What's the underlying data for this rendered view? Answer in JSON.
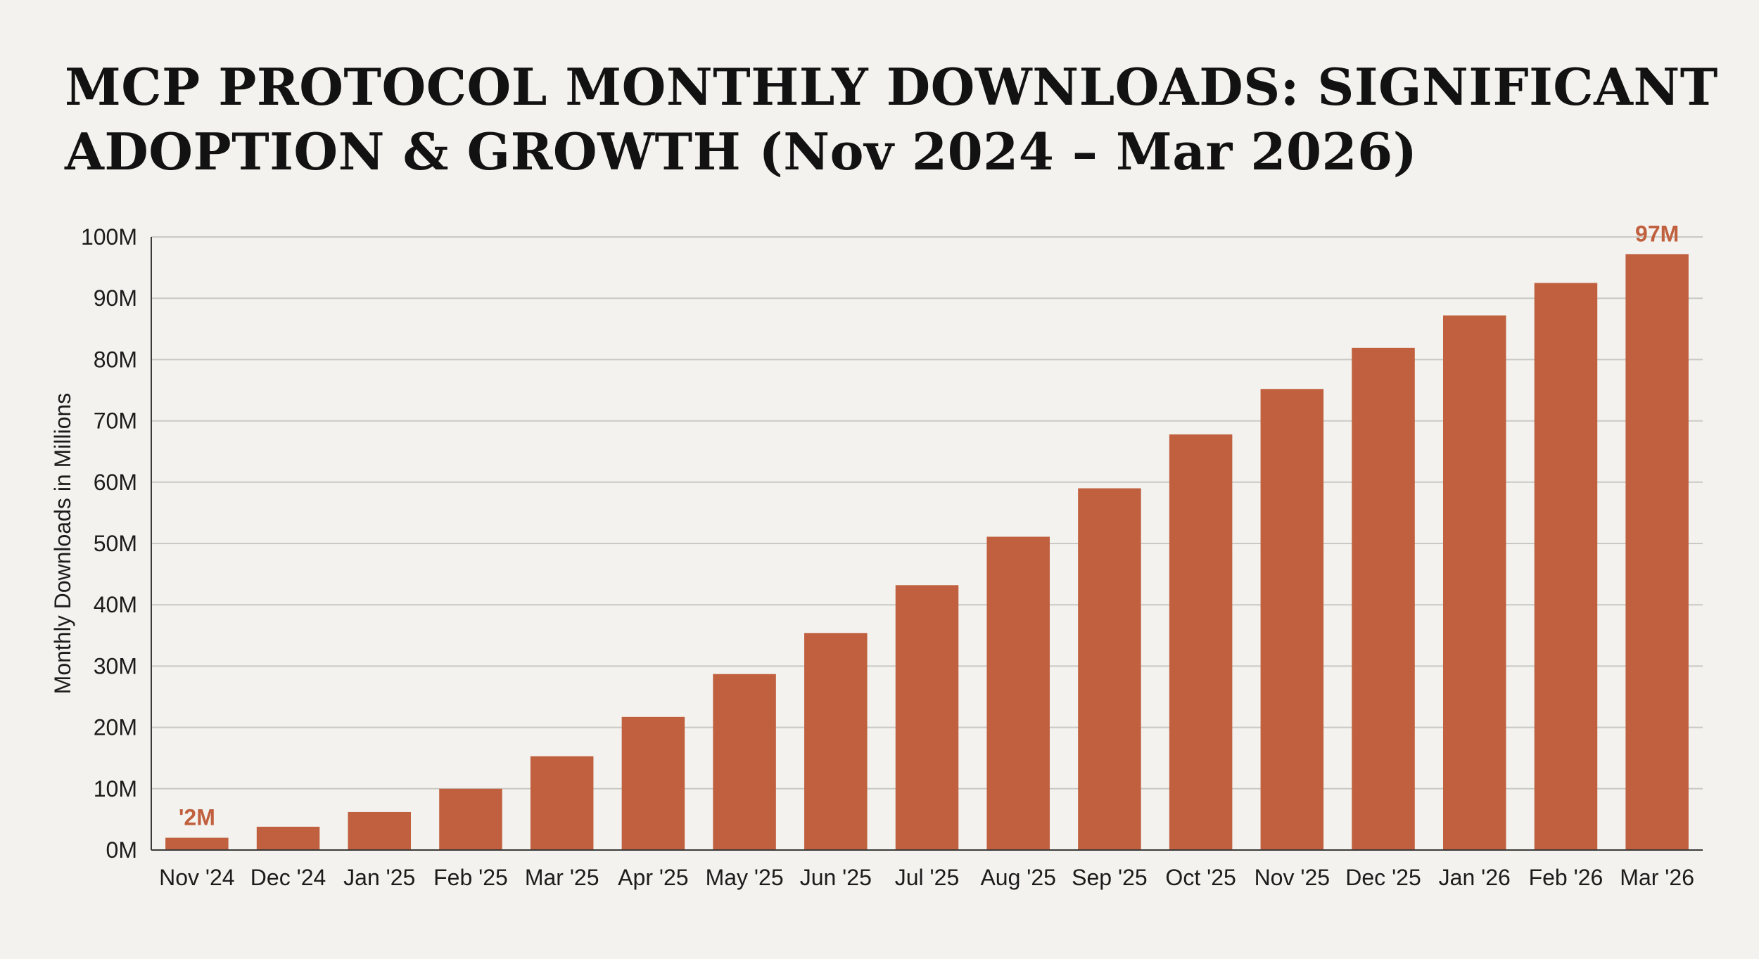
{
  "chart_data": {
    "type": "bar",
    "title": "MCP PROTOCOL MONTHLY DOWNLOADS: SIGNIFICANT ADOPTION & GROWTH (Nov 2024 – Mar 2026)",
    "xlabel": "",
    "ylabel": "Monthly Downloads in Millions",
    "ylim": [
      0,
      100
    ],
    "yticks": [
      0,
      10,
      20,
      30,
      40,
      50,
      60,
      70,
      80,
      90,
      100
    ],
    "ytick_labels": [
      "0M",
      "10M",
      "20M",
      "30M",
      "40M",
      "50M",
      "60M",
      "70M",
      "80M",
      "90M",
      "100M"
    ],
    "categories": [
      "Nov '24",
      "Dec '24",
      "Jan '25",
      "Feb '25",
      "Mar '25",
      "Apr '25",
      "May '25",
      "Jun '25",
      "Jul '25",
      "Aug '25",
      "Sep '25",
      "Oct '25",
      "Nov '25",
      "Dec '25",
      "Jan '26",
      "Feb '26",
      "Mar '26"
    ],
    "values": [
      2,
      3.8,
      6.2,
      10,
      15.3,
      21.7,
      28.7,
      35.4,
      43.2,
      51.1,
      59,
      67.8,
      75.2,
      81.9,
      87.2,
      92.5,
      97.2
    ],
    "annotations": [
      {
        "index": 0,
        "text": "'2M"
      },
      {
        "index": 16,
        "text": "97M"
      }
    ],
    "grid": true,
    "colors": {
      "bar": "#c0603e",
      "label": "#c0603e",
      "grid": "#c9c9c4",
      "axis": "#3a3a3a"
    }
  }
}
